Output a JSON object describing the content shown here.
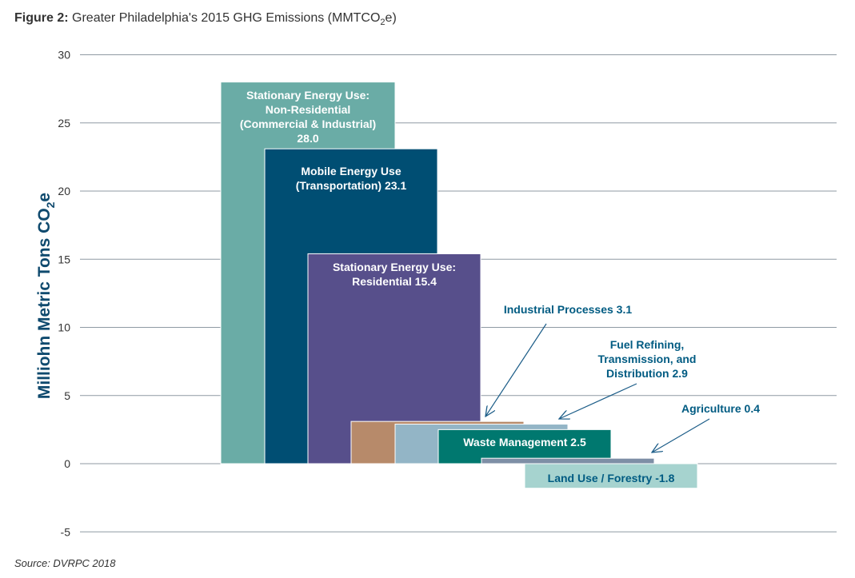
{
  "figure": {
    "label": "Figure 2:",
    "title_pre": "Greater Philadelphia's 2015 GHG Emissions (MMTCO",
    "title_sub": "2",
    "title_post": "e)"
  },
  "source": "Source: DVRPC 2018",
  "chart_data": {
    "type": "bar",
    "ylabel": "Milliohn Metric Tons CO",
    "ylabel_sub": "2",
    "ylabel_post": "e",
    "ylim": [
      -5,
      30
    ],
    "yticks": [
      30,
      25,
      20,
      15,
      10,
      5,
      0,
      -5
    ],
    "grid": true,
    "categories": [
      "Stationary Energy Use: Non-Residential (Commercial & Industrial)",
      "Mobile Energy Use (Transportation)",
      "Stationary Energy Use: Residential",
      "Industrial Processes",
      "Fuel Refining, Transmission, and Distribution",
      "Waste Management",
      "Agriculture",
      "Land Use / Forestry"
    ],
    "values": [
      28.0,
      23.1,
      15.4,
      3.1,
      2.9,
      2.5,
      0.4,
      -1.8
    ],
    "colors": [
      "#6aaca6",
      "#004e73",
      "#574f8b",
      "#b78a6a",
      "#93b5c6",
      "#00786f",
      "#7e8fa6",
      "#a6d3cf"
    ],
    "annotations": [
      [
        "Stationary Energy Use:",
        "Non-Residential",
        "(Commercial & Industrial)",
        "28.0"
      ],
      [
        "Mobile Energy Use",
        "(Transportation) 23.1"
      ],
      [
        "Stationary Energy Use:",
        "Residential 15.4"
      ],
      [
        "Industrial Processes 3.1"
      ],
      [
        "Fuel Refining,",
        "Transmission, and",
        "Distribution 2.9"
      ],
      [
        "Waste Management 2.5"
      ],
      [
        "Agriculture 0.4"
      ],
      [
        "Land Use / Forestry -1.8"
      ]
    ]
  }
}
